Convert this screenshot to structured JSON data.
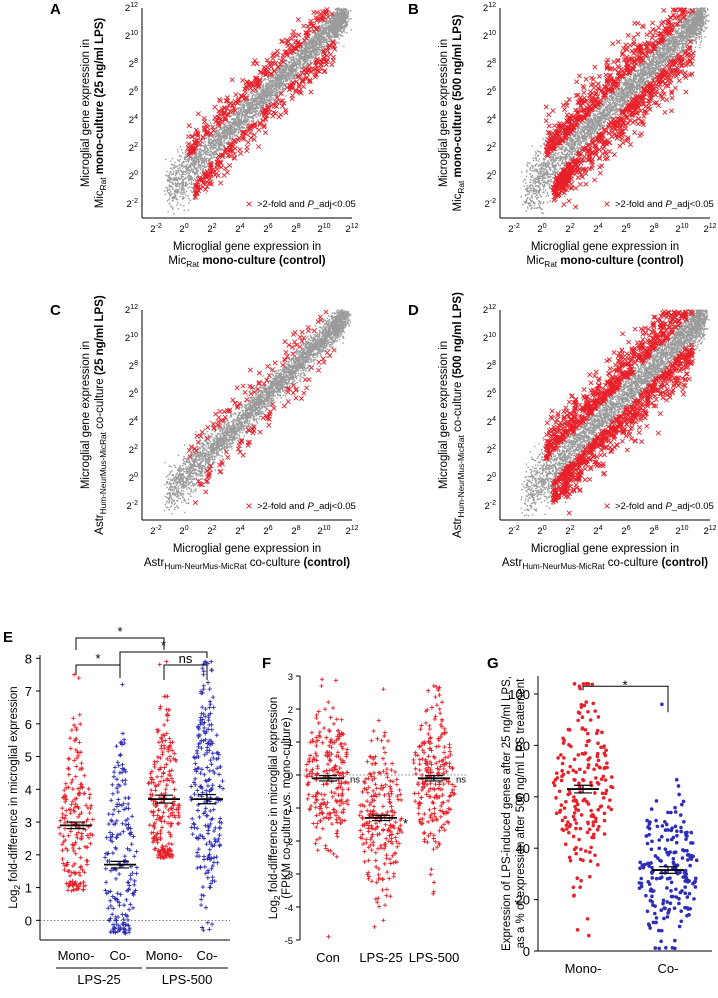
{
  "colors": {
    "grey": "#9a9a9a",
    "red": "#e8202a",
    "blue": "#2d2db8",
    "black": "#000000"
  },
  "chart_data": [
    {
      "panel": "A",
      "type": "scatter",
      "xlabel_lines": [
        "Microglial gene expression in",
        "Mic_Rat mono-culture (control)"
      ],
      "ylabel_lines": [
        "Microglial gene expression in",
        "Mic_Rat mono-culture (25 ng/ml LPS)"
      ],
      "tick_labels": [
        "2^-2",
        "2^0",
        "2^2",
        "2^4",
        "2^6",
        "2^8",
        "2^10",
        "2^12"
      ],
      "tick_exponents": [
        -2,
        0,
        2,
        4,
        6,
        8,
        10,
        12
      ],
      "axis_range_log2": [
        -3,
        12
      ],
      "legend": ">2-fold and P_adj<0.05",
      "series": [
        {
          "name": "all genes",
          "color": "grey",
          "marker": "dot",
          "n": 4200,
          "spread": 0.55
        },
        {
          "name": ">2-fold and P_adj<0.05",
          "color": "red",
          "marker": "x",
          "n": 520
        }
      ]
    },
    {
      "panel": "B",
      "type": "scatter",
      "xlabel_lines": [
        "Microglial gene expression in",
        "Mic_Rat mono-culture (control)"
      ],
      "ylabel_lines": [
        "Microglial gene expression in",
        "Mic_Rat mono-culture (500 ng/ml LPS)"
      ],
      "tick_labels": [
        "2^-2",
        "2^0",
        "2^2",
        "2^4",
        "2^6",
        "2^8",
        "2^10",
        "2^12"
      ],
      "tick_exponents": [
        -2,
        0,
        2,
        4,
        6,
        8,
        10,
        12
      ],
      "axis_range_log2": [
        -3,
        12
      ],
      "legend": ">2-fold and P_adj<0.05",
      "series": [
        {
          "name": "all genes",
          "color": "grey",
          "marker": "dot",
          "n": 4200,
          "spread": 0.65
        },
        {
          "name": ">2-fold and P_adj<0.05",
          "color": "red",
          "marker": "x",
          "n": 1100
        }
      ]
    },
    {
      "panel": "C",
      "type": "scatter",
      "xlabel_lines": [
        "Microglial gene expression in",
        "Astr_Hum-Neur_Mus-Mic_Rat co-culture (control)"
      ],
      "ylabel_lines": [
        "Microglial gene expression in",
        "Astr_Hum-Neur_Mus-Mic_Rat co-culture (25 ng/ml LPS)"
      ],
      "tick_labels": [
        "2^-2",
        "2^0",
        "2^2",
        "2^4",
        "2^6",
        "2^8",
        "2^10",
        "2^12"
      ],
      "tick_exponents": [
        -2,
        0,
        2,
        4,
        6,
        8,
        10,
        12
      ],
      "axis_range_log2": [
        -3,
        12
      ],
      "legend": ">2-fold and P_adj<0.05",
      "series": [
        {
          "name": "all genes",
          "color": "grey",
          "marker": "dot",
          "n": 4200,
          "spread": 0.5
        },
        {
          "name": ">2-fold and P_adj<0.05",
          "color": "red",
          "marker": "x",
          "n": 150
        }
      ]
    },
    {
      "panel": "D",
      "type": "scatter",
      "xlabel_lines": [
        "Microglial gene expression in",
        "Astr_Hum-Neur_Mus-Mic_Rat co-culture (control)"
      ],
      "ylabel_lines": [
        "Microglial gene expression in",
        "Astr_Hum-Neur_Mus-Mic_Rat co-culture (500 ng/ml LPS)"
      ],
      "tick_labels": [
        "2^-2",
        "2^0",
        "2^2",
        "2^4",
        "2^6",
        "2^8",
        "2^10",
        "2^12"
      ],
      "tick_exponents": [
        -2,
        0,
        2,
        4,
        6,
        8,
        10,
        12
      ],
      "axis_range_log2": [
        -3,
        12
      ],
      "legend": ">2-fold and P_adj<0.05",
      "series": [
        {
          "name": "all genes",
          "color": "grey",
          "marker": "dot",
          "n": 4200,
          "spread": 0.7
        },
        {
          "name": ">2-fold and P_adj<0.05",
          "color": "red",
          "marker": "x",
          "n": 1300
        }
      ]
    },
    {
      "panel": "E",
      "type": "scatter",
      "ylabel": "Log2 fold-difference in microglial expression",
      "ylim": [
        -0.6,
        8.1
      ],
      "yticks": [
        "0",
        "1",
        "2",
        "3",
        "4",
        "5",
        "6",
        "7",
        "8"
      ],
      "categories": [
        "Mono-",
        "Co-",
        "Mono-",
        "Co-"
      ],
      "group_labels": [
        "LPS-25",
        "LPS-500"
      ],
      "series": [
        {
          "category": "Mono-",
          "group": "LPS-25",
          "color": "red",
          "mean": 2.9,
          "sem": 0.1,
          "n": 200,
          "range": [
            0.9,
            7.5
          ]
        },
        {
          "category": "Co-",
          "group": "LPS-25",
          "color": "blue",
          "mean": 1.7,
          "sem": 0.1,
          "n": 200,
          "range": [
            -0.4,
            7.2
          ]
        },
        {
          "category": "Mono-",
          "group": "LPS-500",
          "color": "red",
          "mean": 3.7,
          "sem": 0.12,
          "n": 240,
          "range": [
            1.9,
            7.9
          ]
        },
        {
          "category": "Co-",
          "group": "LPS-500",
          "color": "blue",
          "mean": 3.7,
          "sem": 0.14,
          "n": 240,
          "range": [
            -0.3,
            7.9
          ]
        }
      ],
      "significance": [
        "*",
        "*",
        "*",
        "ns"
      ]
    },
    {
      "panel": "F",
      "type": "scatter",
      "ylabel_lines": [
        "Log2 fold-difference in microglial expression",
        "(FPKM co-culture vs. mono-culture)"
      ],
      "ylim": [
        -5,
        3
      ],
      "yticks": [
        "-5",
        "-4",
        "-3",
        "-2",
        "-1",
        "0",
        "1",
        "2",
        "3"
      ],
      "categories": [
        "Con",
        "LPS-25",
        "LPS-500"
      ],
      "series": [
        {
          "category": "Con",
          "color": "red",
          "mean": -0.1,
          "sem": 0.08,
          "n": 240,
          "range": [
            -4.9,
            2.9
          ]
        },
        {
          "category": "LPS-25",
          "color": "red",
          "mean": -1.3,
          "sem": 0.08,
          "n": 240,
          "range": [
            -4.6,
            2.6
          ]
        },
        {
          "category": "LPS-500",
          "color": "red",
          "mean": -0.1,
          "sem": 0.08,
          "n": 240,
          "range": [
            -3.6,
            2.7
          ]
        }
      ],
      "annotations": [
        "ns",
        "*",
        "ns"
      ]
    },
    {
      "panel": "G",
      "type": "scatter",
      "ylabel_lines": [
        "Expression of LPS-induced genes after 25 ng/ml LPS,",
        "as a % of expression after 500 ng/ml LPS treatement"
      ],
      "ylim": [
        0,
        107
      ],
      "yticks": [
        "0",
        "20",
        "40",
        "60",
        "80",
        "100"
      ],
      "categories": [
        "Mono-",
        "Co-"
      ],
      "series": [
        {
          "category": "Mono-",
          "color": "red",
          "mean": 63,
          "sem": 1.5,
          "n": 200,
          "range": [
            6,
            104
          ]
        },
        {
          "category": "Co-",
          "color": "blue",
          "mean": 31.5,
          "sem": 1.3,
          "n": 200,
          "range": [
            1,
            96
          ]
        }
      ],
      "significance": [
        "*"
      ]
    }
  ]
}
